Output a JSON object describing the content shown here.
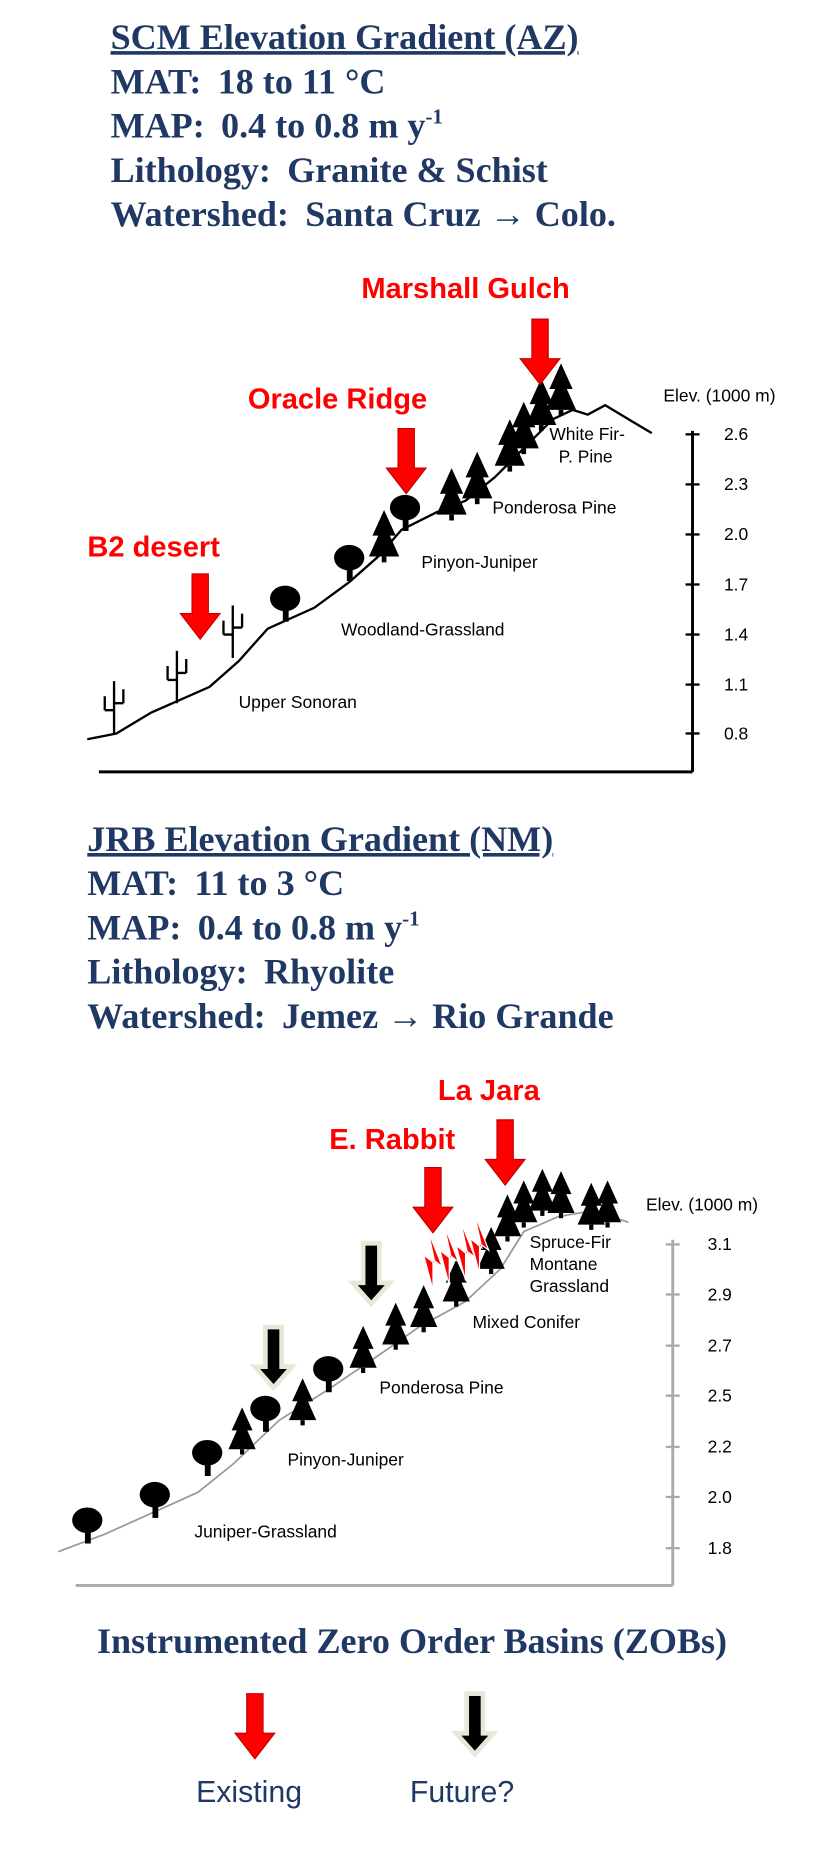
{
  "scm": {
    "title": "SCM Elevation Gradient (AZ)",
    "lines": [
      {
        "label": "MAT:",
        "value": "18 to 11 °C"
      },
      {
        "label": "MAP:",
        "value": "0.4 to 0.8 m y",
        "superscript": "-1"
      },
      {
        "label": "Lithology:",
        "value": "Granite & Schist"
      },
      {
        "label": "Watershed:",
        "value": "Santa Cruz → Colo."
      }
    ],
    "axis_label": "Elev. (1000 m)",
    "elevations": [
      "2.6",
      "2.3",
      "2.0",
      "1.7",
      "1.4",
      "1.1",
      "0.8"
    ],
    "sites": [
      "Marshall Gulch",
      "Oracle Ridge",
      "B2 desert"
    ],
    "zones": [
      [
        "White Fir-",
        "P. Pine"
      ],
      [
        "Ponderosa Pine"
      ],
      [
        "Pinyon-Juniper"
      ],
      [
        "Woodland-Grassland"
      ],
      [
        "Upper Sonoran"
      ]
    ]
  },
  "jrb": {
    "title": "JRB Elevation Gradient (NM)",
    "lines": [
      {
        "label": "MAT:",
        "value": "11 to 3 °C"
      },
      {
        "label": "MAP:",
        "value": "0.4 to 0.8 m y",
        "superscript": "-1"
      },
      {
        "label": "Lithology:",
        "value": "Rhyolite"
      },
      {
        "label": "Watershed:",
        "value": "Jemez → Rio Grande"
      }
    ],
    "axis_label": "Elev. (1000 m)",
    "elevations": [
      "3.1",
      "2.9",
      "2.7",
      "2.5",
      "2.2",
      "2.0",
      "1.8"
    ],
    "sites": [
      "La Jara",
      "E. Rabbit"
    ],
    "zones": [
      [
        "Spruce-Fir",
        "Montane",
        "Grassland"
      ],
      [
        "Mixed Conifer"
      ],
      [
        "Ponderosa Pine"
      ],
      [
        "Pinyon-Juniper"
      ],
      [
        "Juniper-Grassland"
      ]
    ]
  },
  "legend": {
    "title": "Instrumented Zero Order Basins (ZOBs)",
    "items": [
      "Existing",
      "Future?"
    ]
  }
}
